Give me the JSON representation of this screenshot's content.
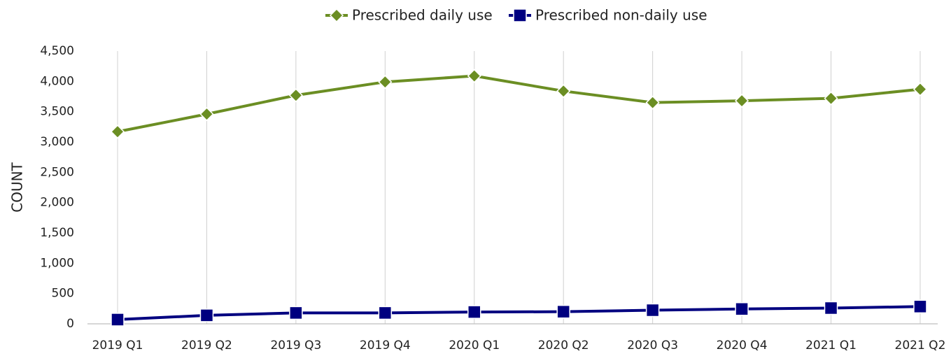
{
  "chart_data": {
    "type": "line",
    "categories": [
      "2019 Q1",
      "2019 Q2",
      "2019 Q3",
      "2019 Q4",
      "2020 Q1",
      "2020 Q2",
      "2020 Q3",
      "2020 Q4",
      "2021 Q1",
      "2021 Q2"
    ],
    "series": [
      {
        "name": "Prescribed daily use",
        "color": "#6b8e23",
        "marker": "diamond",
        "values": [
          3170,
          3460,
          3770,
          3990,
          4090,
          3840,
          3650,
          3680,
          3720,
          3870
        ]
      },
      {
        "name": "Prescribed non-daily use",
        "color": "#000080",
        "marker": "square",
        "values": [
          70,
          140,
          180,
          180,
          195,
          200,
          225,
          245,
          260,
          285
        ]
      }
    ],
    "y_label": "COUNT",
    "ylim": [
      0,
      4500
    ],
    "yticks": [
      0,
      500,
      {
        "value": 1000,
        "label": "1,000"
      },
      {
        "value": 1500,
        "label": "1,500"
      },
      {
        "value": 2000,
        "label": "2,000"
      },
      {
        "value": 2500,
        "label": "2,500"
      },
      {
        "value": 3000,
        "label": "3,000"
      },
      {
        "value": 3500,
        "label": "3,500"
      },
      {
        "value": 4000,
        "label": "4,000"
      },
      {
        "value": 4500,
        "label": "4,500"
      }
    ],
    "grid": true,
    "legend": "top"
  }
}
